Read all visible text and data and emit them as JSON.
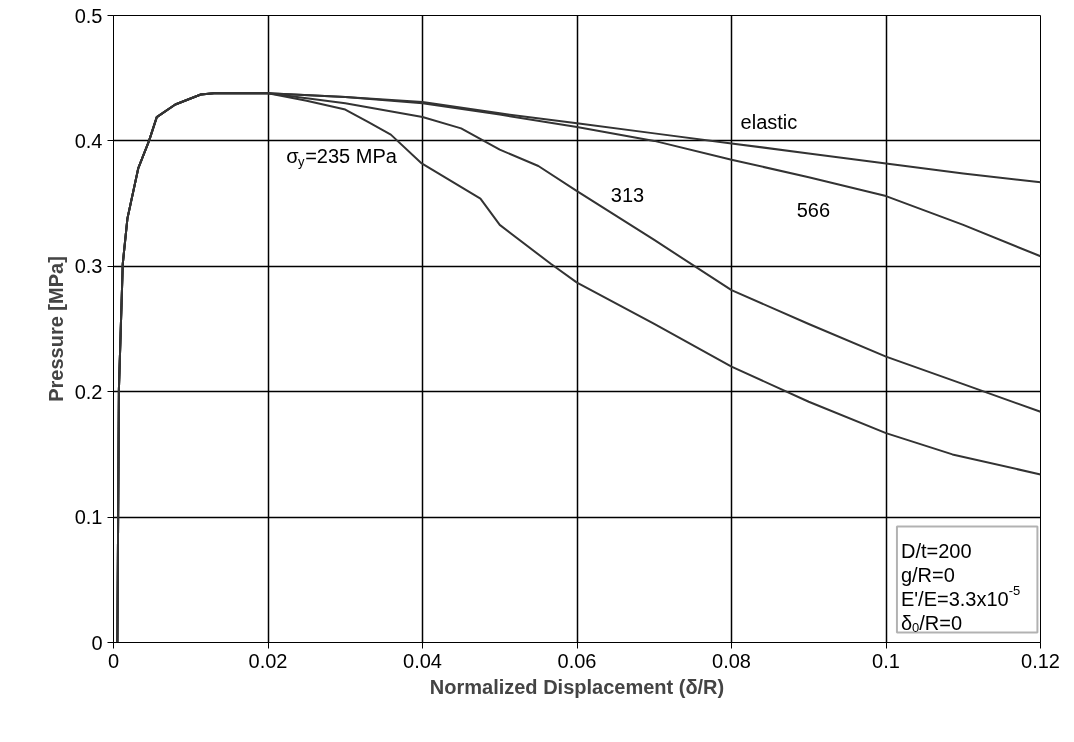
{
  "chart_data": {
    "type": "line",
    "xlabel": "Normalized Displacement (δ/R)",
    "ylabel": "Pressure [MPa]",
    "xlim": [
      0,
      0.12
    ],
    "xticks": [
      0,
      0.02,
      0.04,
      0.06,
      0.08,
      0.1,
      0.12
    ],
    "ylim": [
      0,
      0.5
    ],
    "yticks": [
      0,
      0.1,
      0.2,
      0.3,
      0.4,
      0.5
    ],
    "grid": true,
    "legend": false,
    "marker": "none",
    "line_style": "solid",
    "series": [
      {
        "name": "σ$_{y}$=235 MPa",
        "color": "#333333",
        "x": [
          0.0005,
          0.0006,
          0.0007,
          0.0012,
          0.0018,
          0.0032,
          0.0046,
          0.0056,
          0.008,
          0.0113,
          0.013,
          0.02,
          0.025,
          0.03,
          0.033,
          0.0359,
          0.0399,
          0.0475,
          0.05,
          0.0566,
          0.06,
          0.07,
          0.08,
          0.09,
          0.1,
          0.1086,
          0.12
        ],
        "values": [
          0,
          0.1,
          0.202,
          0.302,
          0.338,
          0.378,
          0.4,
          0.419,
          0.429,
          0.437,
          0.438,
          0.438,
          0.432,
          0.425,
          0.415,
          0.405,
          0.382,
          0.354,
          0.333,
          0.302,
          0.287,
          0.254,
          0.22,
          0.192,
          0.167,
          0.15,
          0.134
        ]
      },
      {
        "name": "313",
        "color": "#333333",
        "x": [
          0.0005,
          0.0006,
          0.0007,
          0.0012,
          0.0018,
          0.0032,
          0.0046,
          0.0056,
          0.008,
          0.0113,
          0.013,
          0.02,
          0.03,
          0.04,
          0.045,
          0.05,
          0.055,
          0.06,
          0.07,
          0.08,
          0.09,
          0.1,
          0.11,
          0.12
        ],
        "values": [
          0,
          0.1,
          0.202,
          0.302,
          0.338,
          0.378,
          0.4,
          0.419,
          0.429,
          0.437,
          0.438,
          0.438,
          0.43,
          0.419,
          0.41,
          0.393,
          0.38,
          0.36,
          0.321,
          0.281,
          0.254,
          0.228,
          0.206,
          0.184
        ]
      },
      {
        "name": "566",
        "color": "#333333",
        "x": [
          0.0005,
          0.0006,
          0.0007,
          0.0012,
          0.0018,
          0.0032,
          0.0046,
          0.0056,
          0.008,
          0.0113,
          0.013,
          0.02,
          0.03,
          0.04,
          0.05,
          0.06,
          0.07,
          0.08,
          0.09,
          0.1,
          0.11,
          0.12
        ],
        "values": [
          0,
          0.1,
          0.202,
          0.302,
          0.338,
          0.378,
          0.4,
          0.419,
          0.429,
          0.437,
          0.438,
          0.438,
          0.435,
          0.43,
          0.421,
          0.411,
          0.4,
          0.385,
          0.371,
          0.356,
          0.333,
          0.308
        ]
      },
      {
        "name": "elastic",
        "color": "#333333",
        "x": [
          0.0005,
          0.0006,
          0.0007,
          0.0012,
          0.0018,
          0.0032,
          0.0046,
          0.0056,
          0.008,
          0.0113,
          0.013,
          0.02,
          0.03,
          0.04,
          0.05,
          0.06,
          0.07,
          0.08,
          0.09,
          0.1,
          0.11,
          0.12
        ],
        "values": [
          0,
          0.1,
          0.202,
          0.302,
          0.338,
          0.378,
          0.4,
          0.419,
          0.429,
          0.437,
          0.438,
          0.438,
          0.435,
          0.431,
          0.422,
          0.414,
          0.406,
          0.398,
          0.39,
          0.382,
          0.374,
          0.367
        ]
      }
    ],
    "annotations": [
      "D/t=200",
      "g/R=0",
      "E'/E=3.3x10$^{-5}$",
      "δ$_{0}$/R=0"
    ]
  }
}
